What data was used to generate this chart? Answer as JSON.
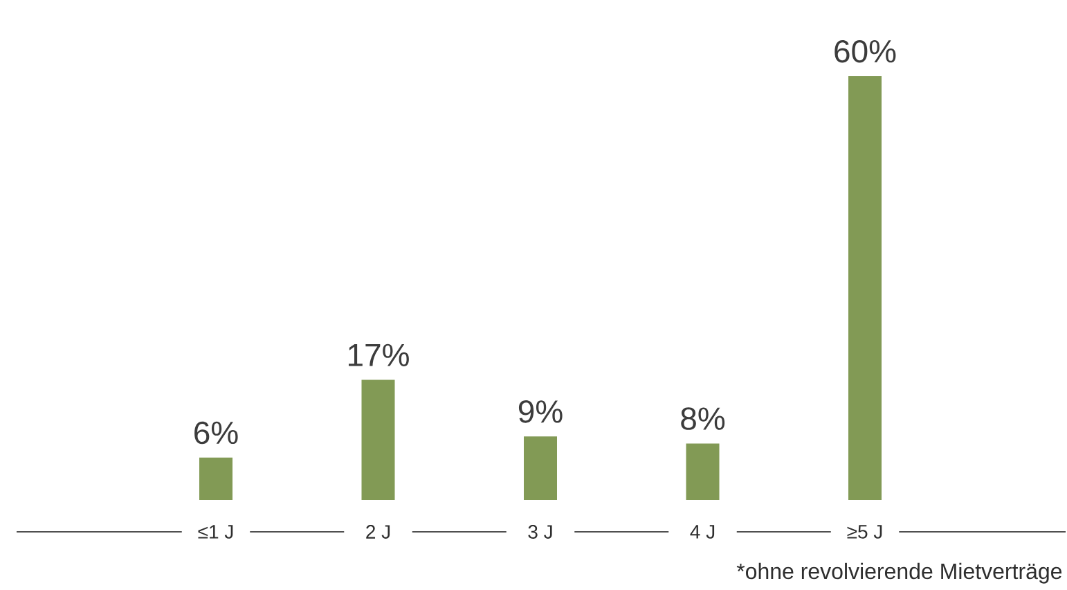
{
  "chart_data": {
    "type": "bar",
    "categories": [
      "≤1 J",
      "2 J",
      "3 J",
      "4 J",
      "≥5 J"
    ],
    "values": [
      6,
      17,
      9,
      8,
      60
    ],
    "value_labels": [
      "6%",
      "17%",
      "9%",
      "8%",
      "60%"
    ],
    "color": "#829a55",
    "tick_labels": "x",
    "annotations": [
      "*ohne revolvierende Mietverträge"
    ]
  }
}
